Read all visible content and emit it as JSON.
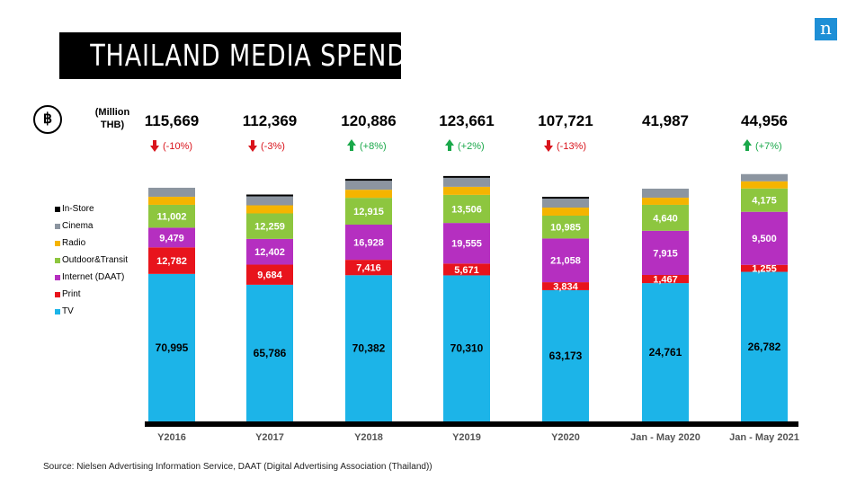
{
  "title": "THAILAND MEDIA SPENDING",
  "logo": "n",
  "currency_icon": "baht-icon",
  "unit_label_1": "(Million",
  "unit_label_2": "THB)",
  "source": "Source: Nielsen Advertising Information Service, DAAT  (Digital Advertising Association (Thailand))",
  "chart_data": {
    "type": "bar",
    "stacked": true,
    "categories": [
      "Y2016",
      "Y2017",
      "Y2018",
      "Y2019",
      "Y2020",
      "Jan - May 2020",
      "Jan - May 2021"
    ],
    "totals": [
      "115,669",
      "112,369",
      "120,886",
      "123,661",
      "107,721",
      "41,987",
      "44,956"
    ],
    "changes": [
      {
        "label": "(-10%)",
        "direction": "down"
      },
      {
        "label": "(-3%)",
        "direction": "down"
      },
      {
        "label": "(+8%)",
        "direction": "up"
      },
      {
        "label": "(+2%)",
        "direction": "up"
      },
      {
        "label": "(-13%)",
        "direction": "down"
      },
      null,
      {
        "label": "(+7%)",
        "direction": "up"
      }
    ],
    "series": [
      {
        "name": "TV",
        "color": "#1cb4e8",
        "values": [
          70995,
          65786,
          70382,
          70310,
          63173,
          24761,
          26782
        ],
        "labels": [
          "70,995",
          "65,786",
          "70,382",
          "70,310",
          "63,173",
          "24,761",
          "26,782"
        ]
      },
      {
        "name": "Print",
        "color": "#e8141c",
        "values": [
          12782,
          9684,
          7416,
          5671,
          3834,
          1467,
          1255
        ],
        "labels": [
          "12,782",
          "9,684",
          "7,416",
          "5,671",
          "3,834",
          "1,467",
          "1,255"
        ]
      },
      {
        "name": "Internet (DAAT)",
        "color": "#b52fc0",
        "values": [
          9479,
          12402,
          16928,
          19555,
          21058,
          7915,
          9500
        ],
        "labels": [
          "9,479",
          "12,402",
          "16,928",
          "19,555",
          "21,058",
          "7,915",
          "9,500"
        ]
      },
      {
        "name": "Outdoor&Transit",
        "color": "#8dc63f",
        "values": [
          11002,
          12259,
          12915,
          13506,
          10985,
          4640,
          4175
        ],
        "labels": [
          "11,002",
          "12,259",
          "12,915",
          "13,506",
          "10,985",
          "4,640",
          "4,175"
        ]
      },
      {
        "name": "Radio",
        "color": "#f5b400",
        "values": [
          null,
          null,
          null,
          null,
          null,
          null,
          null
        ],
        "labels": []
      },
      {
        "name": "Cinema",
        "color": "#8c95a0",
        "values": [
          null,
          null,
          null,
          null,
          null,
          null,
          null
        ],
        "labels": []
      },
      {
        "name": "In-Store",
        "color": "#000000",
        "values": [
          null,
          null,
          null,
          null,
          null,
          null,
          null
        ],
        "labels": []
      }
    ],
    "legend_order": [
      "In-Store",
      "Cinema",
      "Radio",
      "Outdoor&Transit",
      "Internet (DAAT)",
      "Print",
      "TV"
    ],
    "legend_position": "left",
    "grid": false,
    "colors": {
      "up": "#1aa84a",
      "down": "#d9141c"
    }
  }
}
